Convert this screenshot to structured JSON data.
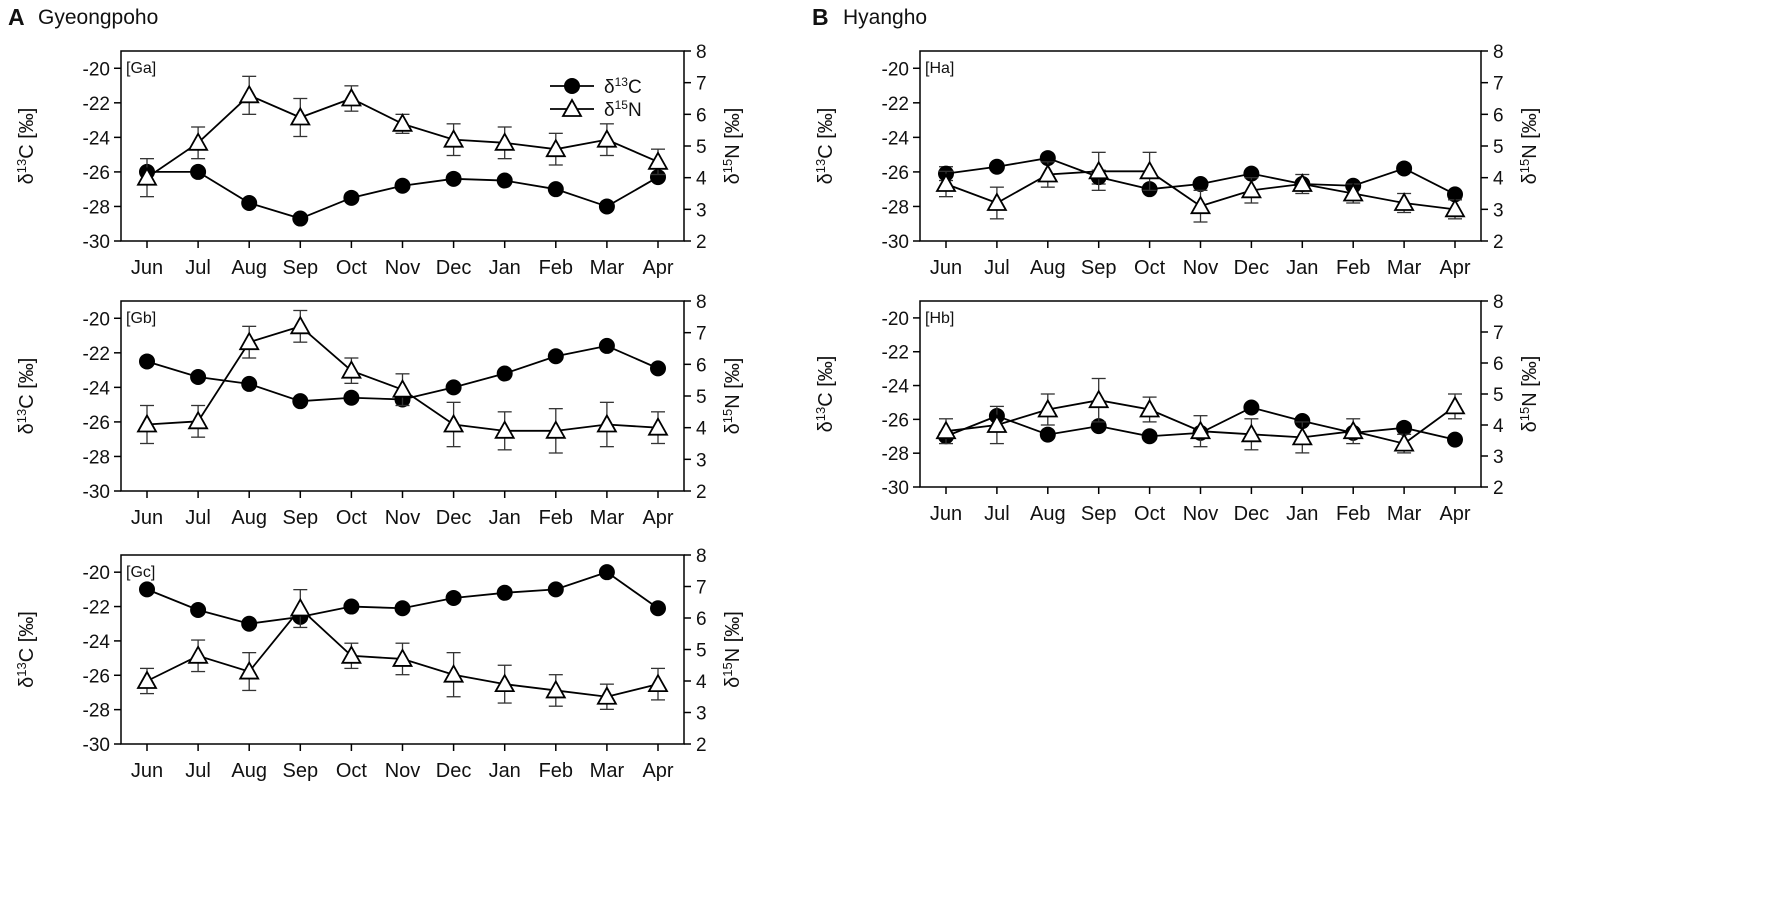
{
  "sections": [
    {
      "letter": "A",
      "title": "Gyeongpoho"
    },
    {
      "letter": "B",
      "title": "Hyangho"
    }
  ],
  "legend": {
    "c_label": "δ13C",
    "n_label": "δ15N"
  },
  "axis_labels": {
    "left": "δ13C [‰]",
    "right": "δ15N [‰]"
  },
  "chart_data": [
    {
      "id": "Ga",
      "label": "[Ga]",
      "type": "line",
      "categories": [
        "Jun",
        "Jul",
        "Aug",
        "Sep",
        "Oct",
        "Nov",
        "Dec",
        "Jan",
        "Feb",
        "Mar",
        "Apr"
      ],
      "left_axis": {
        "label": "δ13C [‰]",
        "ylim": [
          -30,
          -19
        ],
        "ticks": [
          -30,
          -28,
          -26,
          -24,
          -22,
          -20
        ]
      },
      "right_axis": {
        "label": "δ15N [‰]",
        "ylim": [
          2,
          8
        ],
        "ticks": [
          2,
          3,
          4,
          5,
          6,
          7,
          8
        ]
      },
      "series": [
        {
          "name": "δ13C",
          "marker": "filled-circle",
          "axis": "left",
          "values": [
            -26.0,
            -26.0,
            -27.8,
            -28.7,
            -27.5,
            -26.8,
            -26.4,
            -26.5,
            -27.0,
            -28.0,
            -26.3
          ],
          "errors": [
            0.1,
            0.1,
            0.1,
            0.1,
            0.1,
            0.1,
            0.1,
            0.1,
            0.1,
            0.1,
            0.1
          ]
        },
        {
          "name": "δ15N",
          "marker": "open-triangle",
          "axis": "right",
          "values": [
            4.0,
            5.1,
            6.6,
            5.9,
            6.5,
            5.7,
            5.2,
            5.1,
            4.9,
            5.2,
            4.5
          ],
          "errors": [
            0.6,
            0.5,
            0.6,
            0.6,
            0.4,
            0.3,
            0.5,
            0.5,
            0.5,
            0.5,
            0.4
          ]
        }
      ]
    },
    {
      "id": "Gb",
      "label": "[Gb]",
      "type": "line",
      "categories": [
        "Jun",
        "Jul",
        "Aug",
        "Sep",
        "Oct",
        "Nov",
        "Dec",
        "Jan",
        "Feb",
        "Mar",
        "Apr"
      ],
      "left_axis": {
        "label": "δ13C [‰]",
        "ylim": [
          -30,
          -19
        ],
        "ticks": [
          -30,
          -28,
          -26,
          -24,
          -22,
          -20
        ]
      },
      "right_axis": {
        "label": "δ15N [‰]",
        "ylim": [
          2,
          8
        ],
        "ticks": [
          2,
          3,
          4,
          5,
          6,
          7,
          8
        ]
      },
      "series": [
        {
          "name": "δ13C",
          "marker": "filled-circle",
          "axis": "left",
          "values": [
            -22.5,
            -23.4,
            -23.8,
            -24.8,
            -24.6,
            -24.7,
            -24.0,
            -23.2,
            -22.2,
            -21.6,
            -22.9
          ],
          "errors": [
            0.1,
            0.1,
            0.1,
            0.2,
            0.1,
            0.1,
            0.1,
            0.1,
            0.1,
            0.1,
            0.1
          ]
        },
        {
          "name": "δ15N",
          "marker": "open-triangle",
          "axis": "right",
          "values": [
            4.1,
            4.2,
            6.7,
            7.2,
            5.8,
            5.2,
            4.1,
            3.9,
            3.9,
            4.1,
            4.0
          ],
          "errors": [
            0.6,
            0.5,
            0.5,
            0.5,
            0.4,
            0.5,
            0.7,
            0.6,
            0.7,
            0.7,
            0.5
          ]
        }
      ]
    },
    {
      "id": "Gc",
      "label": "[Gc]",
      "type": "line",
      "categories": [
        "Jun",
        "Jul",
        "Aug",
        "Sep",
        "Oct",
        "Nov",
        "Dec",
        "Jan",
        "Feb",
        "Mar",
        "Apr"
      ],
      "left_axis": {
        "label": "δ13C [‰]",
        "ylim": [
          -30,
          -19
        ],
        "ticks": [
          -30,
          -28,
          -26,
          -24,
          -22,
          -20
        ]
      },
      "right_axis": {
        "label": "δ15N [‰]",
        "ylim": [
          2,
          8
        ],
        "ticks": [
          2,
          3,
          4,
          5,
          6,
          7,
          8
        ]
      },
      "series": [
        {
          "name": "δ13C",
          "marker": "filled-circle",
          "axis": "left",
          "values": [
            -21.0,
            -22.2,
            -23.0,
            -22.6,
            -22.0,
            -22.1,
            -21.5,
            -21.2,
            -21.0,
            -20.0,
            -22.1
          ],
          "errors": [
            0.1,
            0.1,
            0.1,
            0.1,
            0.1,
            0.1,
            0.1,
            0.1,
            0.1,
            0.1,
            0.1
          ]
        },
        {
          "name": "δ15N",
          "marker": "open-triangle",
          "axis": "right",
          "values": [
            4.0,
            4.8,
            4.3,
            6.3,
            4.8,
            4.7,
            4.2,
            3.9,
            3.7,
            3.5,
            3.9
          ],
          "errors": [
            0.4,
            0.5,
            0.6,
            0.6,
            0.4,
            0.5,
            0.7,
            0.6,
            0.5,
            0.4,
            0.5
          ]
        }
      ]
    },
    {
      "id": "Ha",
      "label": "[Ha]",
      "type": "line",
      "categories": [
        "Jun",
        "Jul",
        "Aug",
        "Sep",
        "Oct",
        "Nov",
        "Dec",
        "Jan",
        "Feb",
        "Mar",
        "Apr"
      ],
      "left_axis": {
        "label": "δ13C [‰]",
        "ylim": [
          -30,
          -19
        ],
        "ticks": [
          -30,
          -28,
          -26,
          -24,
          -22,
          -20
        ]
      },
      "right_axis": {
        "label": "δ15N [‰]",
        "ylim": [
          2,
          8
        ],
        "ticks": [
          2,
          3,
          4,
          5,
          6,
          7,
          8
        ]
      },
      "series": [
        {
          "name": "δ13C",
          "marker": "filled-circle",
          "axis": "left",
          "values": [
            -26.1,
            -25.7,
            -25.2,
            -26.3,
            -27.0,
            -26.7,
            -26.1,
            -26.7,
            -26.8,
            -25.8,
            -27.3
          ],
          "errors": [
            0.4,
            0.1,
            0.1,
            0.4,
            0.1,
            0.1,
            0.1,
            0.2,
            0.1,
            0.1,
            0.1
          ]
        },
        {
          "name": "δ15N",
          "marker": "open-triangle",
          "axis": "right",
          "values": [
            3.8,
            3.2,
            4.1,
            4.2,
            4.2,
            3.1,
            3.6,
            3.8,
            3.5,
            3.2,
            3.0
          ],
          "errors": [
            0.4,
            0.5,
            0.4,
            0.6,
            0.6,
            0.5,
            0.4,
            0.3,
            0.3,
            0.3,
            0.3
          ]
        }
      ]
    },
    {
      "id": "Hb",
      "label": "[Hb]",
      "type": "line",
      "categories": [
        "Jun",
        "Jul",
        "Aug",
        "Sep",
        "Oct",
        "Nov",
        "Dec",
        "Jan",
        "Feb",
        "Mar",
        "Apr"
      ],
      "left_axis": {
        "label": "δ13C [‰]",
        "ylim": [
          -30,
          -19
        ],
        "ticks": [
          -30,
          -28,
          -26,
          -24,
          -22,
          -20
        ]
      },
      "right_axis": {
        "label": "δ15N [‰]",
        "ylim": [
          2,
          8
        ],
        "ticks": [
          2,
          3,
          4,
          5,
          6,
          7,
          8
        ]
      },
      "series": [
        {
          "name": "δ13C",
          "marker": "filled-circle",
          "axis": "left",
          "values": [
            -27.0,
            -25.8,
            -26.9,
            -26.4,
            -27.0,
            -26.8,
            -25.3,
            -26.1,
            -26.8,
            -26.5,
            -27.2
          ],
          "errors": [
            0.2,
            0.2,
            0.2,
            0.2,
            0.2,
            0.2,
            0.2,
            0.2,
            0.2,
            0.2,
            0.2
          ]
        },
        {
          "name": "δ15N",
          "marker": "open-triangle",
          "axis": "right",
          "values": [
            3.8,
            4.0,
            4.5,
            4.8,
            4.5,
            3.8,
            3.7,
            3.6,
            3.8,
            3.4,
            4.6
          ],
          "errors": [
            0.4,
            0.6,
            0.5,
            0.7,
            0.4,
            0.5,
            0.5,
            0.5,
            0.4,
            0.3,
            0.4
          ]
        }
      ]
    }
  ]
}
